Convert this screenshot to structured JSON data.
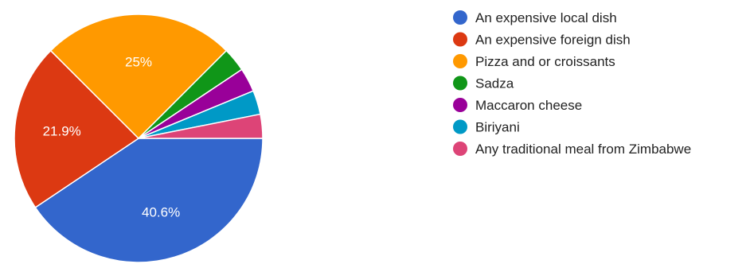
{
  "chart_data": {
    "type": "pie",
    "title": "",
    "legend_position": "right",
    "slices": [
      {
        "label": "An expensive local dish",
        "value": 40.6,
        "color": "#3366cc",
        "data_label": "40.6%"
      },
      {
        "label": "An expensive foreign dish",
        "value": 21.9,
        "color": "#dc3912",
        "data_label": "21.9%"
      },
      {
        "label": "Pizza and or croissants",
        "value": 25.0,
        "color": "#ff9900",
        "data_label": "25%"
      },
      {
        "label": "Sadza",
        "value": 3.125,
        "color": "#109618",
        "data_label": ""
      },
      {
        "label": "Maccaron cheese",
        "value": 3.125,
        "color": "#990099",
        "data_label": ""
      },
      {
        "label": "Biriyani",
        "value": 3.125,
        "color": "#0099c6",
        "data_label": ""
      },
      {
        "label": "Any traditional meal from Zimbabwe",
        "value": 3.125,
        "color": "#dd4477",
        "data_label": ""
      }
    ]
  }
}
